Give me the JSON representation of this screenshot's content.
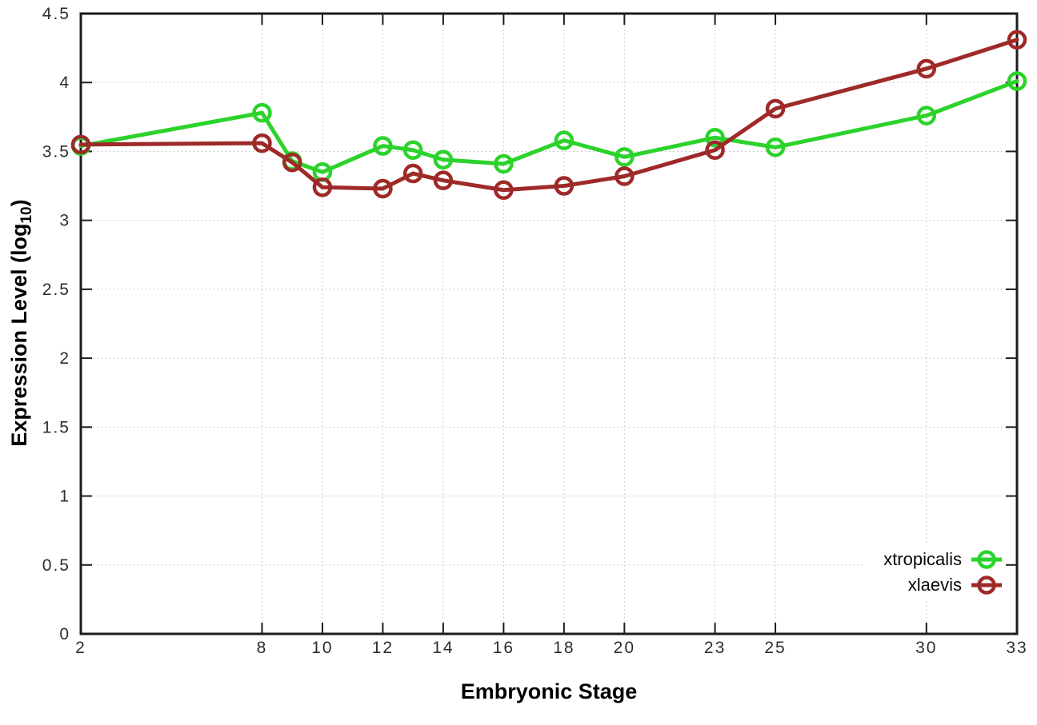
{
  "chart_data": {
    "type": "line",
    "title": "",
    "xlabel": "Embryonic Stage",
    "ylabel": "Expression Level (log10)",
    "ylabel_parts": {
      "prefix": "Expression Level (log",
      "subscript": "10",
      "suffix": ")"
    },
    "xlim": [
      2,
      33
    ],
    "ylim": [
      0,
      4.5
    ],
    "x_ticks": [
      2,
      8,
      10,
      12,
      14,
      16,
      18,
      20,
      23,
      25,
      30,
      33
    ],
    "y_ticks": [
      0,
      0.5,
      1,
      1.5,
      2,
      2.5,
      3,
      3.5,
      4,
      4.5
    ],
    "grid": "dotted",
    "legend_position": "bottom-right",
    "x": [
      2,
      8,
      9,
      10,
      12,
      13,
      14,
      16,
      18,
      20,
      23,
      25,
      30,
      33
    ],
    "series": [
      {
        "name": "xtropicalis",
        "color": "#2bd32b",
        "marker": "open-circle",
        "values": [
          3.54,
          3.78,
          3.43,
          3.35,
          3.54,
          3.51,
          3.44,
          3.41,
          3.58,
          3.46,
          3.6,
          3.53,
          3.76,
          4.01
        ]
      },
      {
        "name": "xlaevis",
        "color": "#9e2a28",
        "marker": "open-circle",
        "values": [
          3.55,
          3.56,
          3.42,
          3.24,
          3.23,
          3.34,
          3.29,
          3.22,
          3.25,
          3.32,
          3.51,
          3.81,
          4.1,
          4.31
        ]
      }
    ]
  },
  "style": {
    "background": "#ffffff",
    "border_color": "#1c1c1c",
    "grid_color": "#bdbdbd",
    "tick_text_color": "#2e2e2e"
  }
}
